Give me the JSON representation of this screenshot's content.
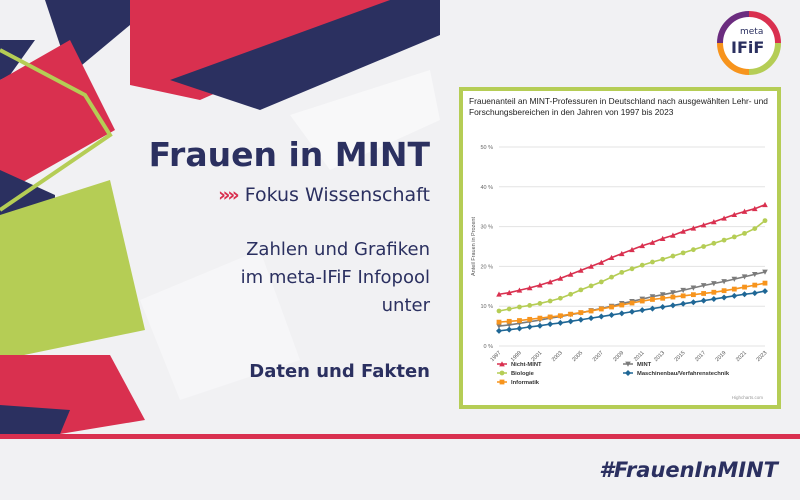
{
  "heading": "Frauen in MINT",
  "subheading": "Fokus Wissenschaft",
  "subheading_chevrons": "»»",
  "body_lines": [
    "Zahlen und Grafiken",
    "im meta-IFiF Infopool",
    "unter"
  ],
  "link_text": "Daten und Fakten",
  "hashtag": "#FrauenInMINT",
  "logo": {
    "line1": "meta",
    "line2": "IFiF"
  },
  "colors": {
    "navy": "#2b3060",
    "crimson": "#d9304f",
    "lime": "#b5cd55",
    "orange": "#f7941d",
    "teal": "#1f6796",
    "gray": "#7b7b7b"
  },
  "chart_data": {
    "type": "line",
    "title": "Frauenanteil an MINT-Professuren in Deutschland nach ausgewählten Lehr- und Forschungsbereichen in den Jahren von 1997 bis 2023",
    "ylabel": "Anteil Frauen in Prozent",
    "xlabel": "",
    "ylim": [
      0,
      50
    ],
    "yticks": [
      "0 %",
      "10 %",
      "20 %",
      "30 %",
      "40 %",
      "50 %"
    ],
    "x": [
      1997,
      1998,
      1999,
      2000,
      2001,
      2002,
      2003,
      2004,
      2005,
      2006,
      2007,
      2008,
      2009,
      2010,
      2011,
      2012,
      2013,
      2014,
      2015,
      2016,
      2017,
      2018,
      2019,
      2020,
      2021,
      2022,
      2023
    ],
    "xticks": [
      "1997",
      "1999",
      "2001",
      "2003",
      "2005",
      "2007",
      "2009",
      "2011",
      "2013",
      "2015",
      "2017",
      "2019",
      "2021",
      "2023"
    ],
    "credit": "Highcharts.com",
    "legend_position": "bottom",
    "series": [
      {
        "name": "Nicht-MINT",
        "color": "#d9304f",
        "marker": "triangle",
        "values": [
          13.0,
          13.4,
          14.0,
          14.6,
          15.3,
          16.1,
          17.0,
          18.0,
          19.0,
          20.0,
          21.0,
          22.2,
          23.2,
          24.2,
          25.2,
          26.0,
          27.0,
          27.8,
          28.8,
          29.6,
          30.4,
          31.2,
          32.1,
          33.0,
          33.8,
          34.5,
          35.5
        ]
      },
      {
        "name": "MINT",
        "color": "#7b7b7b",
        "marker": "triangle-down",
        "values": [
          5.0,
          5.3,
          5.7,
          6.1,
          6.5,
          7.0,
          7.4,
          7.9,
          8.3,
          8.9,
          9.4,
          10.0,
          10.7,
          11.2,
          11.8,
          12.4,
          12.9,
          13.4,
          14.0,
          14.6,
          15.2,
          15.7,
          16.2,
          16.8,
          17.4,
          18.0,
          18.6
        ]
      },
      {
        "name": "Biologie",
        "color": "#b5cd55",
        "marker": "circle",
        "values": [
          8.8,
          9.3,
          9.8,
          10.2,
          10.7,
          11.3,
          12.0,
          13.0,
          14.1,
          15.1,
          16.1,
          17.3,
          18.5,
          19.4,
          20.3,
          21.1,
          21.8,
          22.6,
          23.4,
          24.2,
          25.0,
          25.8,
          26.6,
          27.4,
          28.3,
          29.5,
          31.5
        ]
      },
      {
        "name": "Maschinenbau/Verfahrenstechnik",
        "color": "#1f6796",
        "marker": "diamond",
        "values": [
          3.8,
          4.1,
          4.4,
          4.8,
          5.1,
          5.5,
          5.8,
          6.2,
          6.6,
          7.0,
          7.4,
          7.8,
          8.2,
          8.6,
          9.0,
          9.4,
          9.8,
          10.2,
          10.6,
          11.0,
          11.4,
          11.8,
          12.2,
          12.6,
          13.0,
          13.3,
          13.8
        ]
      },
      {
        "name": "Informatik",
        "color": "#f7941d",
        "marker": "square",
        "values": [
          6.0,
          6.2,
          6.4,
          6.7,
          7.0,
          7.3,
          7.6,
          8.0,
          8.4,
          8.8,
          9.3,
          9.8,
          10.3,
          10.8,
          11.3,
          11.7,
          12.0,
          12.3,
          12.6,
          12.9,
          13.2,
          13.5,
          13.9,
          14.3,
          14.8,
          15.3,
          15.8
        ]
      }
    ]
  }
}
